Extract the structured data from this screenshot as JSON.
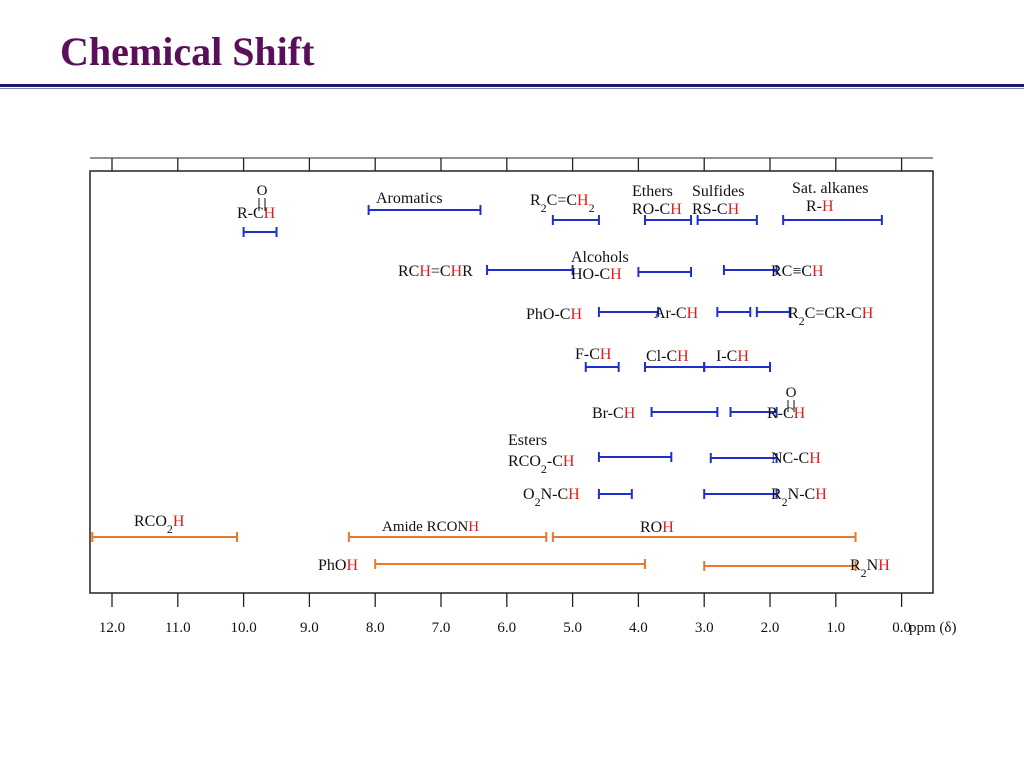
{
  "slide": {
    "title": "Chemical Shift"
  },
  "chart_data": {
    "type": "range",
    "xlabel": "ppm (δ)",
    "xlim": [
      12.3,
      0
    ],
    "ticks": [
      "12.0",
      "11.0",
      "10.0",
      "9.0",
      "8.0",
      "7.0",
      "6.0",
      "5.0",
      "4.0",
      "3.0",
      "2.0",
      "1.0",
      "0.0"
    ],
    "colors": {
      "blue": "#1f2fcc",
      "orange": "#e8782c",
      "highlight": "#e01b1b",
      "text": "#111111"
    },
    "ranges": [
      {
        "label": "R-C(O)H",
        "start": 10.0,
        "end": 9.5,
        "color": "blue"
      },
      {
        "label": "Aromatics",
        "start": 8.1,
        "end": 6.4,
        "color": "blue"
      },
      {
        "label": "R2C=CH2",
        "start": 5.3,
        "end": 4.6,
        "color": "blue"
      },
      {
        "label": "Ethers RO-CH",
        "start": 3.9,
        "end": 3.2,
        "color": "blue"
      },
      {
        "label": "Sulfides RS-CH",
        "start": 3.1,
        "end": 2.2,
        "color": "blue"
      },
      {
        "label": "Sat. alkanes R-H",
        "start": 1.8,
        "end": 0.3,
        "color": "blue"
      },
      {
        "label": "RCH=CHR",
        "start": 6.3,
        "end": 5.0,
        "color": "blue"
      },
      {
        "label": "Alcohols HO-CH",
        "start": 4.0,
        "end": 3.2,
        "color": "blue"
      },
      {
        "label": "RC≡CH",
        "start": 2.7,
        "end": 1.9,
        "color": "blue"
      },
      {
        "label": "PhO-CH",
        "start": 4.6,
        "end": 3.7,
        "color": "blue"
      },
      {
        "label": "Ar-CH",
        "start": 2.8,
        "end": 2.3,
        "color": "blue"
      },
      {
        "label": "R2C=CR-CH",
        "start": 2.2,
        "end": 1.7,
        "color": "blue"
      },
      {
        "label": "F-CH",
        "start": 4.8,
        "end": 4.3,
        "color": "blue"
      },
      {
        "label": "Cl-CH",
        "start": 3.9,
        "end": 3.0,
        "color": "blue"
      },
      {
        "label": "I-CH",
        "start": 3.0,
        "end": 2.0,
        "color": "blue"
      },
      {
        "label": "Br-CH",
        "start": 3.8,
        "end": 2.8,
        "color": "blue"
      },
      {
        "label": "R-C(O)-CH",
        "start": 2.6,
        "end": 1.9,
        "color": "blue"
      },
      {
        "label": "Esters RCO2-CH",
        "start": 4.6,
        "end": 3.5,
        "color": "blue"
      },
      {
        "label": "NC-CH",
        "start": 2.9,
        "end": 1.9,
        "color": "blue"
      },
      {
        "label": "O2N-CH",
        "start": 4.6,
        "end": 4.1,
        "color": "blue"
      },
      {
        "label": "R2N-CH",
        "start": 3.0,
        "end": 1.9,
        "color": "blue"
      },
      {
        "label": "RCO2H",
        "start": 12.3,
        "end": 10.1,
        "color": "orange"
      },
      {
        "label": "Amide RCONH",
        "start": 8.4,
        "end": 5.4,
        "color": "orange"
      },
      {
        "label": "ROH",
        "start": 5.3,
        "end": 0.7,
        "color": "orange"
      },
      {
        "label": "PhOH",
        "start": 8.0,
        "end": 3.9,
        "color": "orange"
      },
      {
        "label": "R2NH",
        "start": 3.0,
        "end": 0.7,
        "color": "orange"
      }
    ]
  }
}
